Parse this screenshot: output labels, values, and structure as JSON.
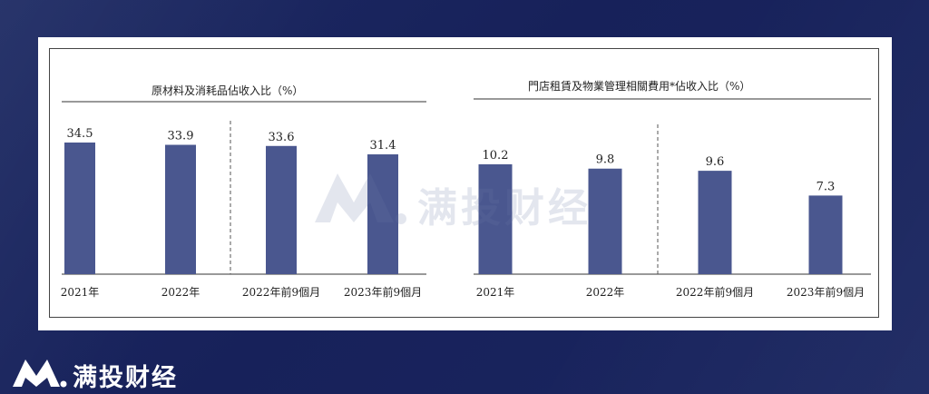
{
  "brand": {
    "name": "满投财经",
    "logo_icon": "brand-logo-icon"
  },
  "watermark": {
    "text": "满投财经",
    "icon": "watermark-logo-icon"
  },
  "colors": {
    "bar": "#4a578f",
    "axis": "#333333",
    "divider": "#555555",
    "background": "#1b265e"
  },
  "chart_data": [
    {
      "type": "bar",
      "title": "原材料及消耗品佔收入比（%）",
      "categories": [
        "2021年",
        "2022年",
        "2022年前9個月",
        "2023年前9個月"
      ],
      "values": [
        34.5,
        33.9,
        33.6,
        31.4
      ],
      "data_labels": [
        "34.5",
        "33.9",
        "33.6",
        "31.4"
      ],
      "xlabel": "",
      "ylabel": "",
      "ylim": [
        0,
        36
      ],
      "grid": false,
      "divider_after_category": 1
    },
    {
      "type": "bar",
      "title": "門店租賃及物業管理相關費用*佔收入比（%）",
      "categories": [
        "2021年",
        "2022年",
        "2022年前9個月",
        "2023年前9個月"
      ],
      "values": [
        10.2,
        9.8,
        9.6,
        7.3
      ],
      "data_labels": [
        "10.2",
        "9.8",
        "9.6",
        "7.3"
      ],
      "xlabel": "",
      "ylabel": "",
      "ylim": [
        0,
        11
      ],
      "grid": false,
      "divider_after_category": 1
    }
  ]
}
